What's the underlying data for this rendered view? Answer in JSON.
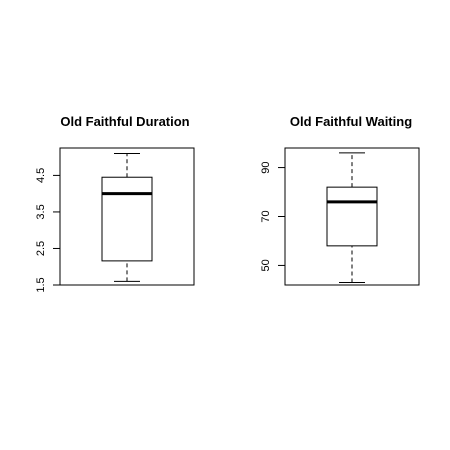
{
  "chart_data": [
    {
      "type": "box",
      "title": "Old Faithful Duration",
      "ylim": [
        1.5,
        5.25
      ],
      "yticks": [
        1.5,
        2.5,
        3.5,
        4.5
      ],
      "ytick_labels": [
        "1.5",
        "2.5",
        "3.5",
        "4.5"
      ],
      "box": {
        "min": 1.6,
        "q1": 2.16,
        "median": 4.0,
        "q3": 4.45,
        "max": 5.1
      }
    },
    {
      "type": "box",
      "title": "Old Faithful Waiting",
      "ylim": [
        42,
        98
      ],
      "yticks": [
        50,
        70,
        90
      ],
      "ytick_labels": [
        "50",
        "70",
        "90"
      ],
      "box": {
        "min": 43,
        "q1": 58,
        "median": 76,
        "q3": 82,
        "max": 96
      }
    }
  ]
}
